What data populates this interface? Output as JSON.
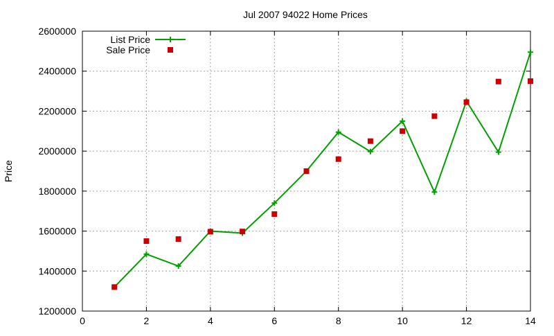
{
  "chart_data": {
    "type": "line",
    "title": "Jul 2007 94022 Home Prices",
    "xlabel": "",
    "ylabel": "Price",
    "xlim": [
      0,
      14
    ],
    "ylim": [
      1200000,
      2600000
    ],
    "x_ticks": [
      0,
      2,
      4,
      6,
      8,
      10,
      12,
      14
    ],
    "y_ticks": [
      1200000,
      1400000,
      1600000,
      1800000,
      2000000,
      2200000,
      2400000,
      2600000
    ],
    "grid": true,
    "legend_position": "top-left",
    "series": [
      {
        "name": "List Price",
        "style": "line-with-plus-markers",
        "color": "#00a000",
        "points": [
          [
            1,
            1320000
          ],
          [
            2,
            1485000
          ],
          [
            3,
            1425000
          ],
          [
            4,
            1600000
          ],
          [
            5,
            1590000
          ],
          [
            6,
            1740000
          ],
          [
            7,
            1900000
          ],
          [
            8,
            2095000
          ],
          [
            9,
            1998000
          ],
          [
            10,
            2150000
          ],
          [
            11,
            1795000
          ],
          [
            12,
            2250000
          ],
          [
            13,
            1995000
          ],
          [
            14,
            2495000
          ]
        ]
      },
      {
        "name": "Sale Price",
        "style": "square-markers",
        "color": "#cc0000",
        "points": [
          [
            1,
            1320000
          ],
          [
            2,
            1550000
          ],
          [
            3,
            1560000
          ],
          [
            4,
            1597000
          ],
          [
            5,
            1598000
          ],
          [
            6,
            1685000
          ],
          [
            7,
            1900000
          ],
          [
            8,
            1960000
          ],
          [
            9,
            2050000
          ],
          [
            10,
            2100000
          ],
          [
            11,
            2175000
          ],
          [
            12,
            2245000
          ],
          [
            13,
            2348000
          ],
          [
            14,
            2350000
          ]
        ]
      }
    ]
  }
}
